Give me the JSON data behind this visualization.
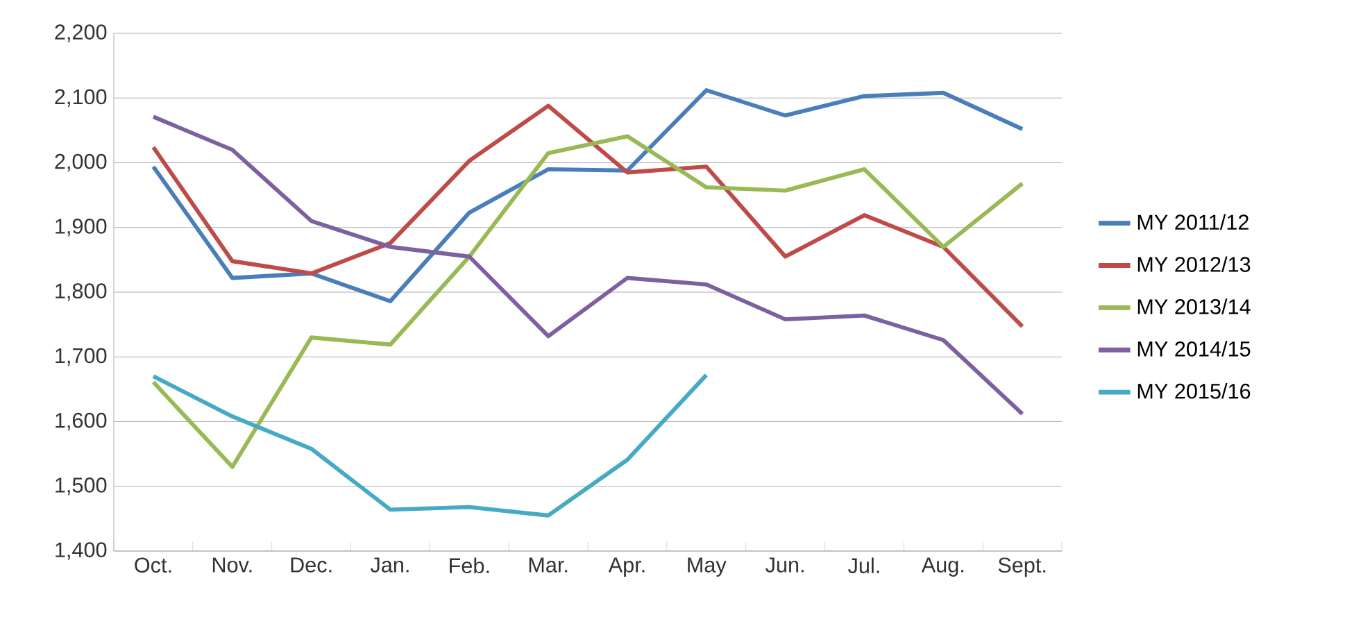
{
  "chart_data": {
    "type": "line",
    "categories": [
      "Oct.",
      "Nov.",
      "Dec.",
      "Jan.",
      "Feb.",
      "Mar.",
      "Apr.",
      "May",
      "Jun.",
      "Jul.",
      "Aug.",
      "Sept."
    ],
    "series": [
      {
        "name": "MY 2011/12",
        "color": "#4a7ebb",
        "values": [
          1994,
          1822,
          1829,
          1786,
          1923,
          1990,
          1988,
          2112,
          2073,
          2103,
          2108,
          2052
        ]
      },
      {
        "name": "MY 2012/13",
        "color": "#be4b48",
        "values": [
          2024,
          1848,
          1829,
          1876,
          2003,
          2088,
          1985,
          1994,
          1855,
          1919,
          1870,
          1747
        ]
      },
      {
        "name": "MY 2013/14",
        "color": "#98b954",
        "values": [
          1661,
          1530,
          1730,
          1719,
          1855,
          2015,
          2041,
          1962,
          1957,
          1990,
          1870,
          1968
        ]
      },
      {
        "name": "MY 2014/15",
        "color": "#7d60a0",
        "values": [
          2071,
          2020,
          1910,
          1870,
          1855,
          1732,
          1822,
          1812,
          1758,
          1764,
          1726,
          1612
        ]
      },
      {
        "name": "MY 2015/16",
        "color": "#46aac5",
        "values": [
          1670,
          1608,
          1558,
          1464,
          1468,
          1455,
          1541,
          1672,
          null,
          null,
          null,
          null
        ]
      }
    ],
    "ylim": [
      1400,
      2200
    ],
    "yticks": [
      {
        "value": 1400,
        "label": "1,400"
      },
      {
        "value": 1500,
        "label": "1,500"
      },
      {
        "value": 1600,
        "label": "1,600"
      },
      {
        "value": 1700,
        "label": "1,700"
      },
      {
        "value": 1800,
        "label": "1,800"
      },
      {
        "value": 1900,
        "label": "1,900"
      },
      {
        "value": 2000,
        "label": "2,000"
      },
      {
        "value": 2100,
        "label": "2,100"
      },
      {
        "value": 2200,
        "label": "2,200"
      }
    ],
    "grid": "y",
    "legend": "right",
    "marker": "none",
    "line_style": "solid"
  }
}
